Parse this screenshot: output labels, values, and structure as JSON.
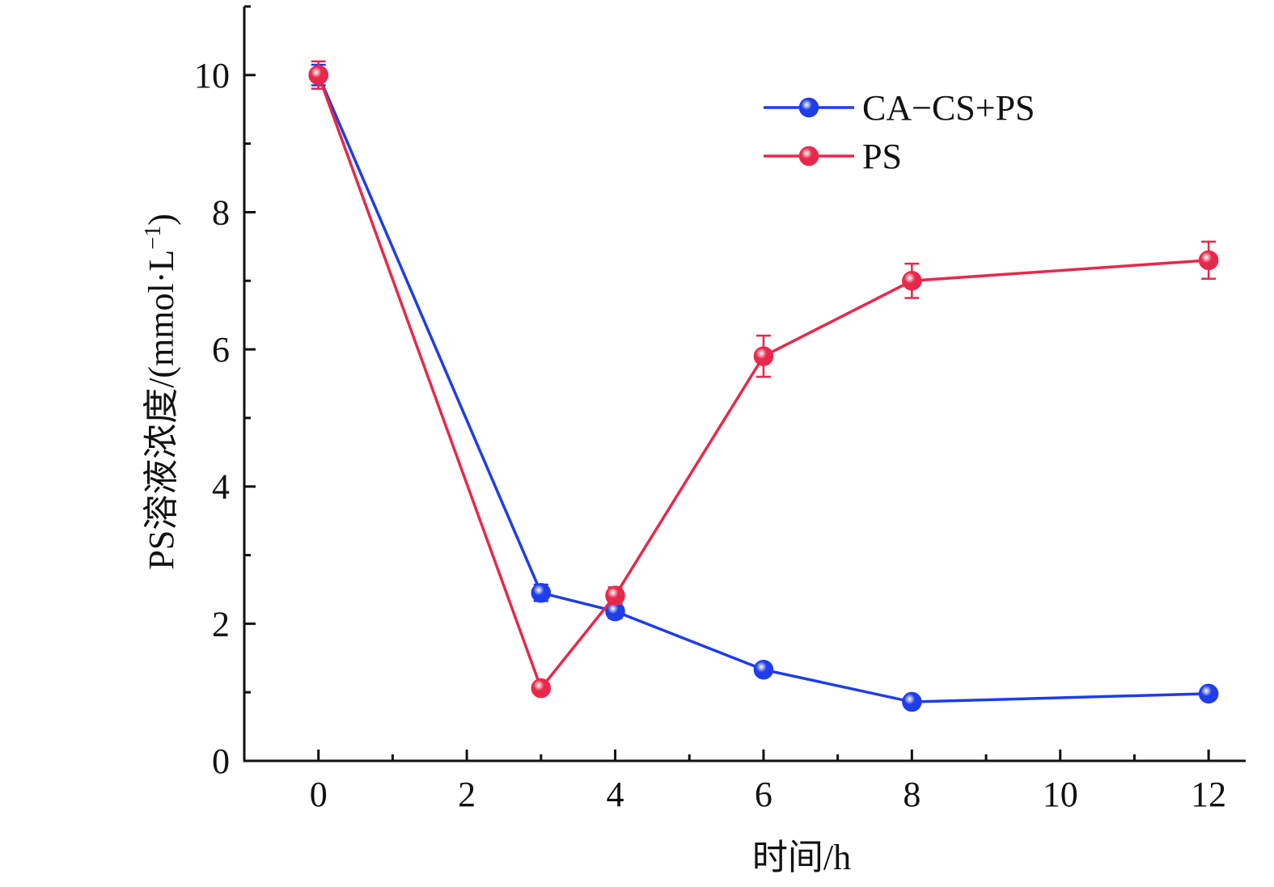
{
  "chart_data": {
    "type": "line",
    "xlabel": "时间/h",
    "ylabel": "PS溶液浓度/(mmol·L",
    "ylabel_sup": "−1",
    "ylabel_close": ")",
    "xlim": [
      -1,
      12.5
    ],
    "ylim": [
      0,
      11
    ],
    "x_ticks": [
      0,
      2,
      4,
      6,
      8,
      10,
      12
    ],
    "x_tick_labels": [
      "0",
      "2",
      "4",
      "6",
      "8",
      "10",
      "12"
    ],
    "y_ticks": [
      0,
      2,
      4,
      6,
      8,
      10
    ],
    "y_tick_labels": [
      "0",
      "2",
      "4",
      "6",
      "8",
      "10"
    ],
    "grid": false,
    "legend_position": "top-right",
    "series": [
      {
        "name": "CA−CS+PS",
        "color": "#1f3de8",
        "x": [
          0,
          3,
          4,
          6,
          8,
          12
        ],
        "y": [
          10.0,
          2.45,
          2.18,
          1.33,
          0.86,
          0.98
        ],
        "error": [
          0.15,
          0.12,
          0.1,
          0.06,
          0.06,
          0.05
        ]
      },
      {
        "name": "PS",
        "color": "#e8284a",
        "x": [
          0,
          3,
          4,
          6,
          8,
          12
        ],
        "y": [
          10.0,
          1.06,
          2.41,
          5.9,
          7.0,
          7.3
        ],
        "error": [
          0.2,
          0.07,
          0.12,
          0.3,
          0.25,
          0.27
        ]
      }
    ]
  }
}
